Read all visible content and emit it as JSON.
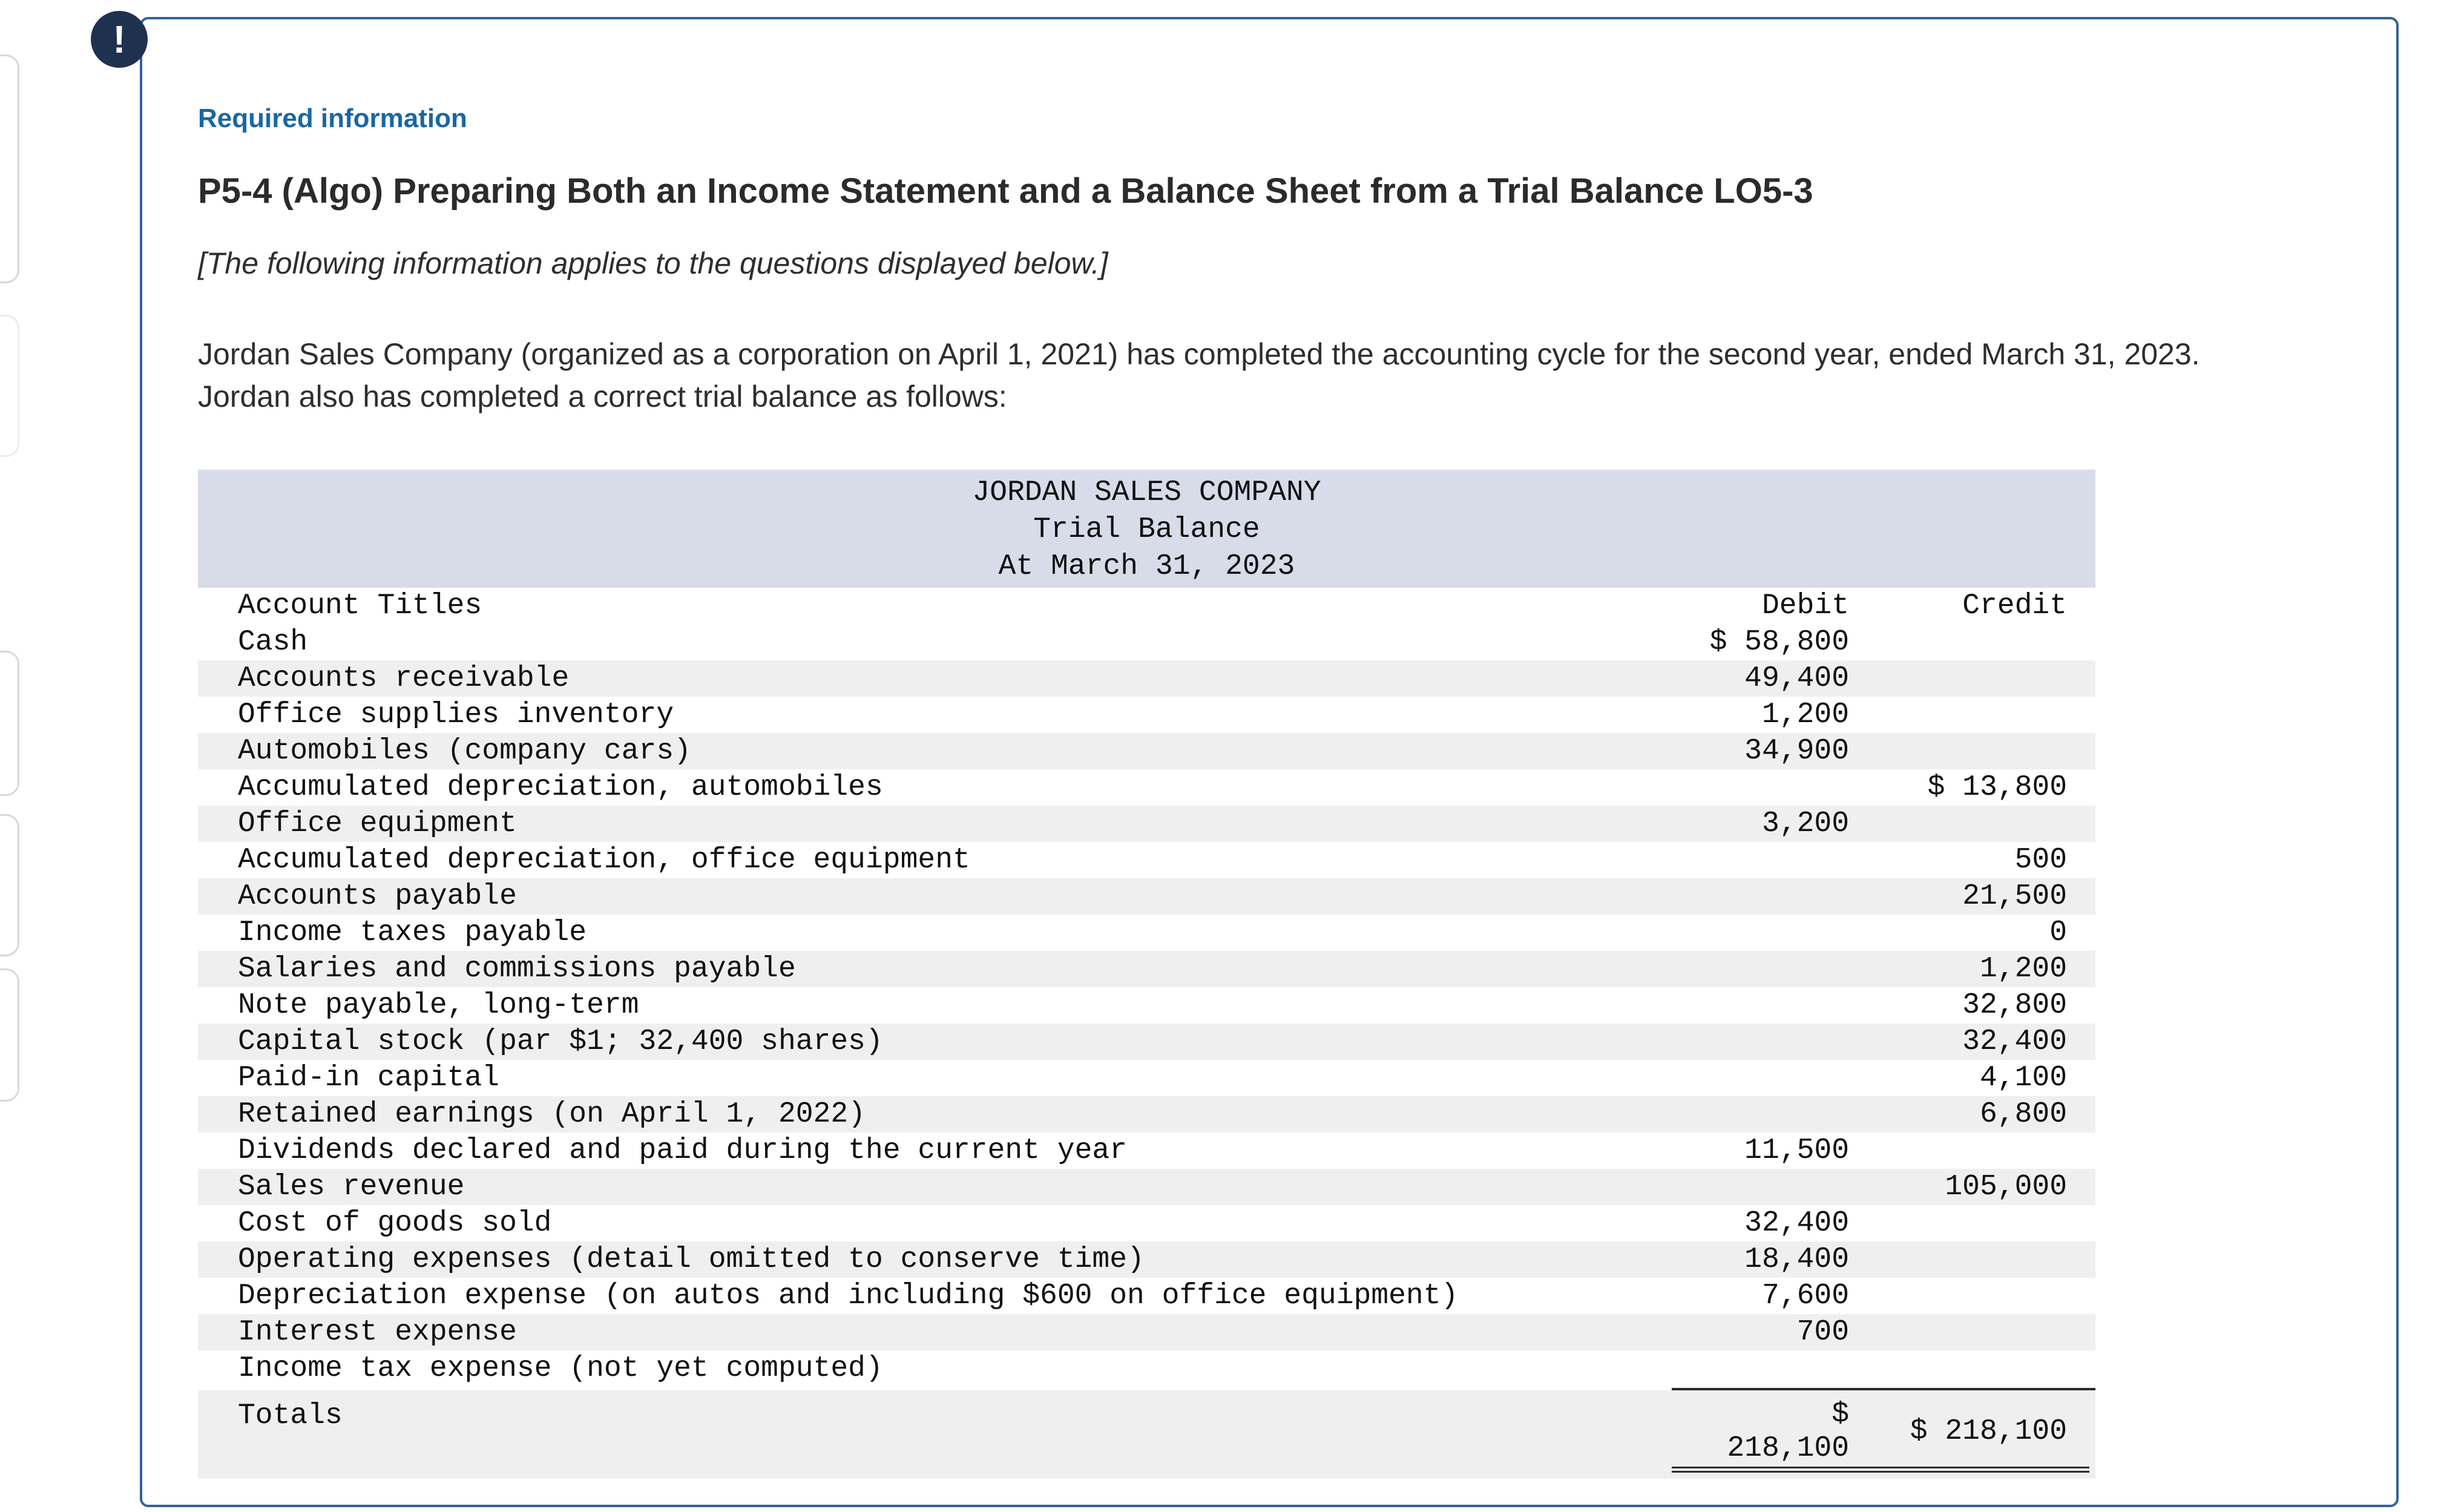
{
  "alert": {
    "icon_text": "!"
  },
  "header": {
    "required_info_label": "Required information",
    "problem_title": "P5-4 (Algo) Preparing Both an Income Statement and a Balance Sheet from a Trial Balance LO5-3",
    "applies_note": "[The following information applies to the questions displayed below.]"
  },
  "intro_text": "Jordan Sales Company (organized as a corporation on April 1, 2021) has completed the accounting cycle for the second year, ended March 31, 2023. Jordan also has completed a correct trial balance as follows:",
  "trial_balance": {
    "company": "JORDAN SALES COMPANY",
    "report_title": "Trial Balance",
    "as_of_date": "At March 31, 2023",
    "columns": {
      "account": "Account Titles",
      "debit": "Debit",
      "credit": "Credit"
    },
    "rows": [
      {
        "account": "Cash",
        "debit": "$ 58,800",
        "credit": ""
      },
      {
        "account": "Accounts receivable",
        "debit": "49,400",
        "credit": ""
      },
      {
        "account": "Office supplies inventory",
        "debit": "1,200",
        "credit": ""
      },
      {
        "account": "Automobiles (company cars)",
        "debit": "34,900",
        "credit": ""
      },
      {
        "account": "Accumulated depreciation, automobiles",
        "debit": "",
        "credit": "$ 13,800"
      },
      {
        "account": "Office equipment",
        "debit": "3,200",
        "credit": ""
      },
      {
        "account": "Accumulated depreciation, office equipment",
        "debit": "",
        "credit": "500"
      },
      {
        "account": "Accounts payable",
        "debit": "",
        "credit": "21,500"
      },
      {
        "account": "Income taxes payable",
        "debit": "",
        "credit": "0"
      },
      {
        "account": "Salaries and commissions payable",
        "debit": "",
        "credit": "1,200"
      },
      {
        "account": "Note payable, long-term",
        "debit": "",
        "credit": "32,800"
      },
      {
        "account": "Capital stock (par $1; 32,400 shares)",
        "debit": "",
        "credit": "32,400"
      },
      {
        "account": "Paid-in capital",
        "debit": "",
        "credit": "4,100"
      },
      {
        "account": "Retained earnings (on April 1, 2022)",
        "debit": "",
        "credit": "6,800"
      },
      {
        "account": "Dividends declared and paid during the current year",
        "debit": "11,500",
        "credit": ""
      },
      {
        "account": "Sales revenue",
        "debit": "",
        "credit": "105,000"
      },
      {
        "account": "Cost of goods sold",
        "debit": "32,400",
        "credit": ""
      },
      {
        "account": "Operating expenses (detail omitted to conserve time)",
        "debit": "18,400",
        "credit": ""
      },
      {
        "account": "Depreciation expense (on autos and including $600 on office equipment)",
        "debit": "7,600",
        "credit": ""
      },
      {
        "account": "Interest expense",
        "debit": "700",
        "credit": ""
      },
      {
        "account": "Income tax expense (not yet computed)",
        "debit": "",
        "credit": ""
      }
    ],
    "totals": {
      "label": "Totals",
      "debit_symbol": "$",
      "debit_amount": "218,100",
      "credit": "$ 218,100"
    }
  },
  "colors": {
    "card_border": "#2f6496",
    "required_info_blue": "#1a67a3",
    "table_header_band": "#d8dbe8",
    "row_stripe": "#efefef",
    "alert_badge_bg": "#1e3250"
  }
}
